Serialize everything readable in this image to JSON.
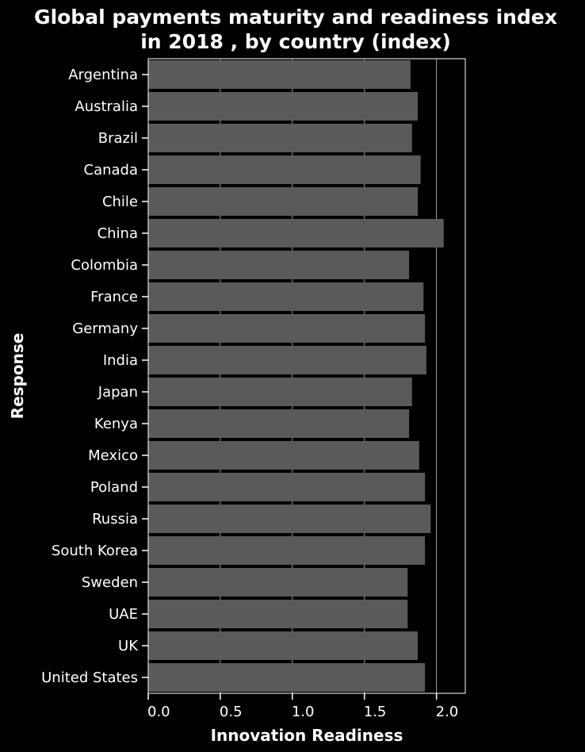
{
  "chart_data": {
    "type": "bar",
    "orientation": "horizontal",
    "title_lines": [
      "Global payments maturity and readiness index",
      "in 2018 , by country (index)"
    ],
    "xlabel": "Innovation Readiness",
    "ylabel": "Response",
    "xlim": [
      0,
      2.2
    ],
    "xticks": [
      0.0,
      0.5,
      1.0,
      1.5,
      2.0
    ],
    "xtick_labels": [
      "0.0",
      "0.5",
      "1.0",
      "1.5",
      "2.0"
    ],
    "grid": "vertical",
    "categories": [
      "Argentina",
      "Australia",
      "Brazil",
      "Canada",
      "Chile",
      "China",
      "Colombia",
      "France",
      "Germany",
      "India",
      "Japan",
      "Kenya",
      "Mexico",
      "Poland",
      "Russia",
      "South Korea",
      "Sweden",
      "UAE",
      "UK",
      "United States"
    ],
    "values": [
      1.82,
      1.87,
      1.83,
      1.89,
      1.87,
      2.05,
      1.81,
      1.91,
      1.92,
      1.93,
      1.83,
      1.81,
      1.88,
      1.92,
      1.96,
      1.92,
      1.8,
      1.8,
      1.87,
      1.92
    ],
    "colors": {
      "background": "#000000",
      "bar": "#5a5a5a",
      "grid": "#a0a0a0",
      "text": "#ffffff"
    }
  }
}
